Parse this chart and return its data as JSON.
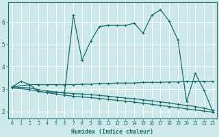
{
  "xlabel": "Humidex (Indice chaleur)",
  "background_color": "#cce8e8",
  "line_color": "#1a6b6b",
  "grid_color": "#ffffff",
  "xlim": [
    -0.5,
    23.5
  ],
  "ylim": [
    1.7,
    6.9
  ],
  "yticks": [
    2,
    3,
    4,
    5,
    6
  ],
  "xticks": [
    0,
    1,
    2,
    3,
    4,
    5,
    6,
    7,
    8,
    9,
    10,
    11,
    12,
    13,
    14,
    15,
    16,
    17,
    18,
    19,
    20,
    21,
    22,
    23
  ],
  "lines": [
    {
      "x": [
        0,
        1,
        2,
        3,
        4,
        5,
        6,
        7,
        8,
        9,
        10,
        11,
        12,
        13,
        14,
        15,
        16,
        17,
        18,
        19,
        20,
        21,
        22,
        23
      ],
      "y": [
        3.1,
        3.35,
        3.2,
        2.9,
        2.85,
        2.85,
        2.85,
        6.3,
        4.3,
        5.15,
        5.8,
        5.85,
        5.85,
        5.85,
        5.95,
        5.5,
        6.3,
        6.55,
        6.05,
        5.2,
        2.45,
        3.7,
        2.95,
        2.0
      ]
    },
    {
      "x": [
        0,
        2,
        3,
        4,
        5,
        6,
        7,
        8,
        9,
        10,
        11,
        12,
        13,
        14,
        15,
        16,
        17,
        18,
        19,
        20,
        21,
        22,
        23
      ],
      "y": [
        3.1,
        3.2,
        3.2,
        3.2,
        3.2,
        3.2,
        3.2,
        3.22,
        3.22,
        3.25,
        3.25,
        3.27,
        3.27,
        3.27,
        3.3,
        3.3,
        3.3,
        3.32,
        3.32,
        3.35,
        3.35,
        3.35,
        3.35
      ]
    },
    {
      "x": [
        0,
        2,
        3,
        4,
        5,
        6,
        7,
        8,
        9,
        10,
        11,
        12,
        13,
        14,
        15,
        16,
        17,
        18,
        19,
        20,
        21,
        22,
        23
      ],
      "y": [
        3.1,
        3.05,
        2.98,
        2.92,
        2.87,
        2.83,
        2.8,
        2.78,
        2.75,
        2.72,
        2.68,
        2.64,
        2.6,
        2.57,
        2.52,
        2.48,
        2.43,
        2.38,
        2.32,
        2.27,
        2.22,
        2.15,
        2.05
      ]
    },
    {
      "x": [
        0,
        2,
        3,
        4,
        5,
        6,
        7,
        8,
        9,
        10,
        11,
        12,
        13,
        14,
        15,
        16,
        17,
        18,
        19,
        20,
        21,
        22,
        23
      ],
      "y": [
        3.05,
        2.98,
        2.9,
        2.84,
        2.78,
        2.73,
        2.68,
        2.65,
        2.62,
        2.58,
        2.54,
        2.5,
        2.46,
        2.42,
        2.37,
        2.32,
        2.27,
        2.22,
        2.17,
        2.12,
        2.07,
        2.02,
        1.97
      ]
    }
  ]
}
